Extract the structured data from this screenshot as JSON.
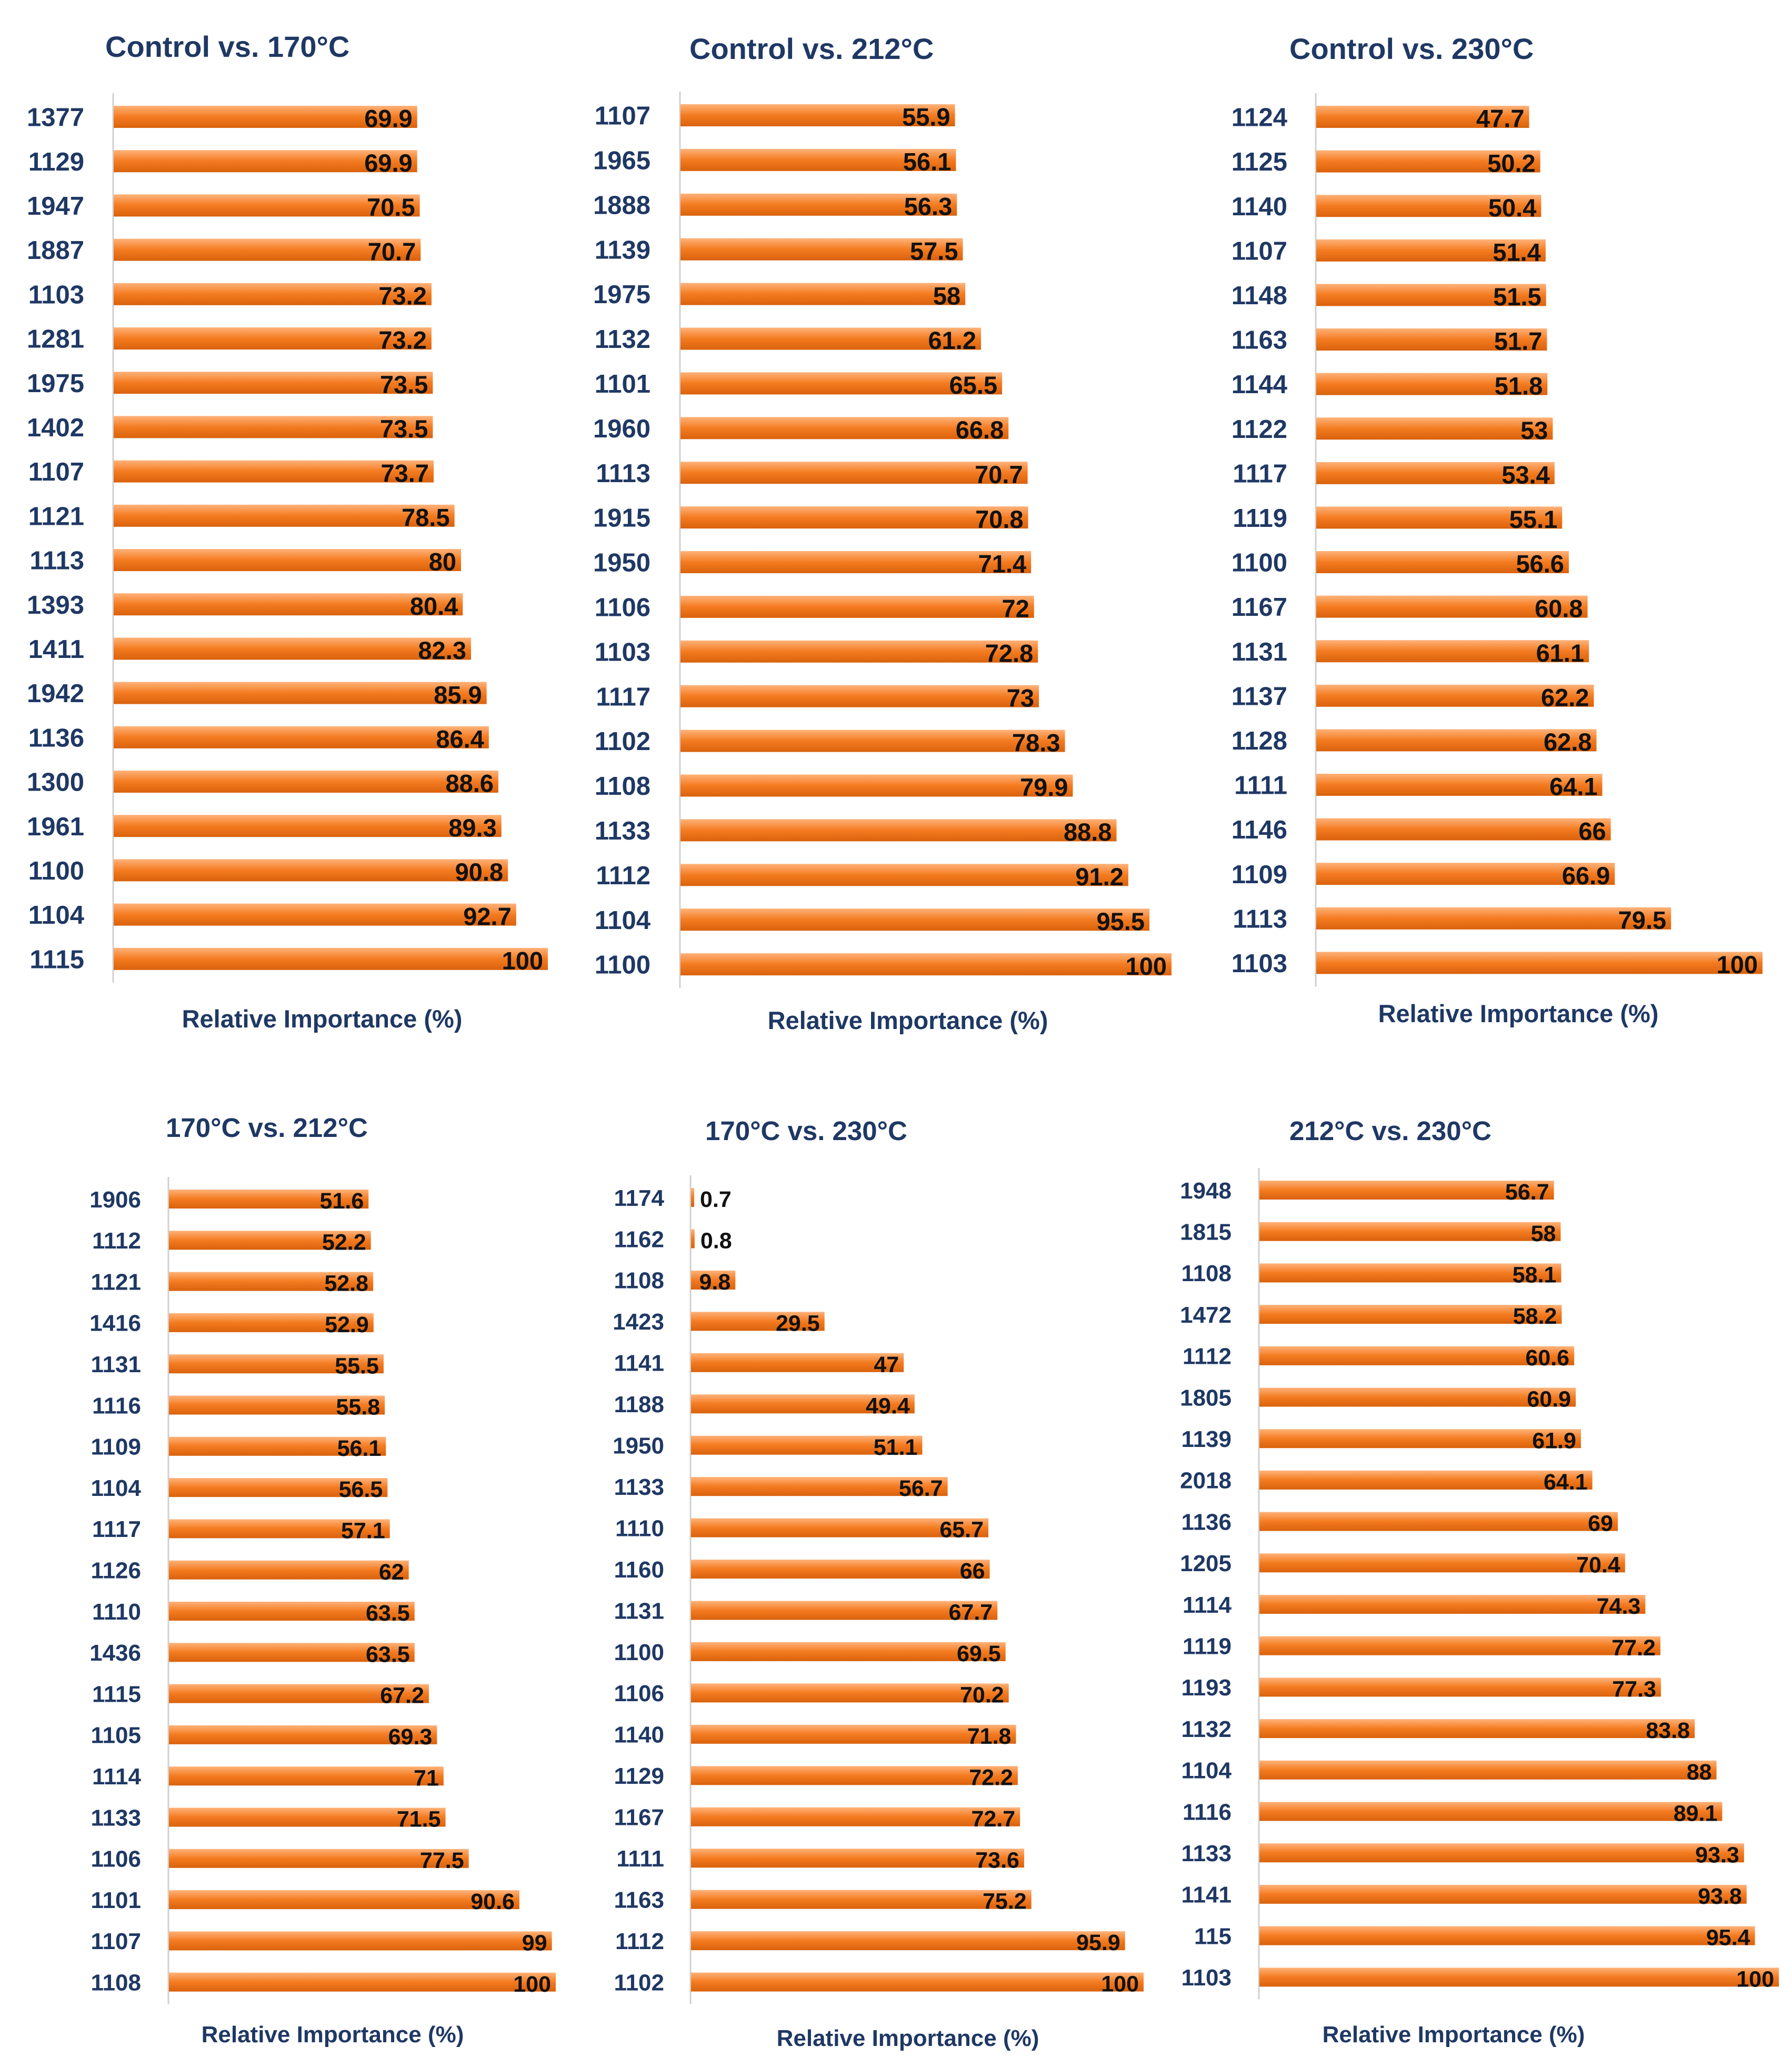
{
  "colors": {
    "bar": "#f47b20",
    "bar_light": "#ffb27a",
    "bar_dark": "#d9620d",
    "text_dark": "#1f3864",
    "value_text": "#111111"
  },
  "chart_data": [
    {
      "type": "bar",
      "orientation": "horizontal",
      "title": "Control vs. 170°C",
      "xlabel": "Relative Importance (%)",
      "xlim": [
        0,
        100
      ],
      "categories": [
        "1377",
        "1129",
        "1947",
        "1887",
        "1103",
        "1281",
        "1975",
        "1402",
        "1107",
        "1121",
        "1113",
        "1393",
        "1411",
        "1942",
        "1136",
        "1300",
        "1961",
        "1100",
        "1104",
        "1115"
      ],
      "values": [
        69.9,
        69.9,
        70.5,
        70.7,
        73.2,
        73.2,
        73.5,
        73.5,
        73.7,
        78.5,
        80,
        80.4,
        82.3,
        85.9,
        86.4,
        88.6,
        89.3,
        90.8,
        92.7,
        100
      ]
    },
    {
      "type": "bar",
      "orientation": "horizontal",
      "title": "Control vs. 212°C",
      "xlabel": "Relative Importance (%)",
      "xlim": [
        0,
        100
      ],
      "categories": [
        "1107",
        "1965",
        "1888",
        "1139",
        "1975",
        "1132",
        "1101",
        "1960",
        "1113",
        "1915",
        "1950",
        "1106",
        "1103",
        "1117",
        "1102",
        "1108",
        "1133",
        "1112",
        "1104",
        "1100"
      ],
      "values": [
        55.9,
        56.1,
        56.3,
        57.5,
        58,
        61.2,
        65.5,
        66.8,
        70.7,
        70.8,
        71.4,
        72,
        72.8,
        73,
        78.3,
        79.9,
        88.8,
        91.2,
        95.5,
        100
      ]
    },
    {
      "type": "bar",
      "orientation": "horizontal",
      "title": "Control vs. 230°C",
      "xlabel": "Relative Importance (%)",
      "xlim": [
        0,
        100
      ],
      "categories": [
        "1124",
        "1125",
        "1140",
        "1107",
        "1148",
        "1163",
        "1144",
        "1122",
        "1117",
        "1119",
        "1100",
        "1167",
        "1131",
        "1137",
        "1128",
        "1111",
        "1146",
        "1109",
        "1113",
        "1103"
      ],
      "values": [
        47.7,
        50.2,
        50.4,
        51.4,
        51.5,
        51.7,
        51.8,
        53,
        53.4,
        55.1,
        56.6,
        60.8,
        61.1,
        62.2,
        62.8,
        64.1,
        66,
        66.9,
        79.5,
        100
      ]
    },
    {
      "type": "bar",
      "orientation": "horizontal",
      "title": "170°C vs. 212°C",
      "xlabel": "Relative Importance (%)",
      "xlim": [
        0,
        100
      ],
      "categories": [
        "1906",
        "1112",
        "1121",
        "1416",
        "1131",
        "1116",
        "1109",
        "1104",
        "1117",
        "1126",
        "1110",
        "1436",
        "1115",
        "1105",
        "1114",
        "1133",
        "1106",
        "1101",
        "1107",
        "1108"
      ],
      "values": [
        51.6,
        52.2,
        52.8,
        52.9,
        55.5,
        55.8,
        56.1,
        56.5,
        57.1,
        62,
        63.5,
        63.5,
        67.2,
        69.3,
        71,
        71.5,
        77.5,
        90.6,
        99,
        100
      ]
    },
    {
      "type": "bar",
      "orientation": "horizontal",
      "title": "170°C vs. 230°C",
      "xlabel": "Relative Importance (%)",
      "xlim": [
        0,
        100
      ],
      "categories": [
        "1174",
        "1162",
        "1108",
        "1423",
        "1141",
        "1188",
        "1950",
        "1133",
        "1110",
        "1160",
        "1131",
        "1100",
        "1106",
        "1140",
        "1129",
        "1167",
        "1111",
        "1163",
        "1112",
        "1102"
      ],
      "values": [
        0.7,
        0.8,
        9.8,
        29.5,
        47,
        49.4,
        51.1,
        56.7,
        65.7,
        66,
        67.7,
        69.5,
        70.2,
        71.8,
        72.2,
        72.7,
        73.6,
        75.2,
        95.9,
        100
      ]
    },
    {
      "type": "bar",
      "orientation": "horizontal",
      "title": "212°C vs. 230°C",
      "xlabel": "Relative Importance (%)",
      "xlim": [
        0,
        100
      ],
      "categories": [
        "1948",
        "1815",
        "1108",
        "1472",
        "1112",
        "1805",
        "1139",
        "2018",
        "1136",
        "1205",
        "1114",
        "1119",
        "1193",
        "1132",
        "1104",
        "1116",
        "1133",
        "1141",
        "115",
        "1103"
      ],
      "values": [
        56.7,
        58,
        58.1,
        58.2,
        60.6,
        60.9,
        61.9,
        64.1,
        69,
        70.4,
        74.3,
        77.2,
        77.3,
        83.8,
        88,
        89.1,
        93.3,
        93.8,
        95.4,
        100
      ]
    }
  ]
}
